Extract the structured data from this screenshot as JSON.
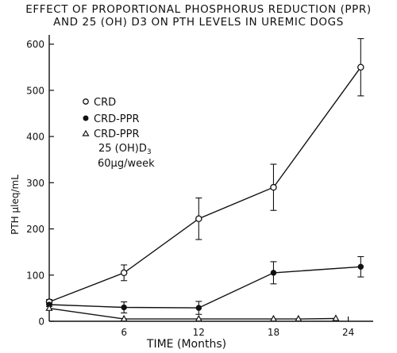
{
  "chart_data": {
    "type": "line",
    "title_lines": [
      "EFFECT OF PROPORTIONAL PHOSPHORUS REDUCTION (PPR)",
      "AND 25 (OH) D3 ON PTH LEVELS IN UREMIC DOGS"
    ],
    "xlabel": "TIME  (Months)",
    "ylabel": "PTH  μleq/mL",
    "xlim": [
      0,
      26
    ],
    "ylim": [
      0,
      620
    ],
    "xticks": [
      6,
      12,
      18,
      24
    ],
    "yticks": [
      0,
      100,
      200,
      300,
      400,
      500,
      600
    ],
    "grid": false,
    "legend_position": "left",
    "series": [
      {
        "name": "CRD",
        "marker": "open-circle",
        "points": [
          {
            "x": 0,
            "y": 42
          },
          {
            "x": 6,
            "y": 105
          },
          {
            "x": 12,
            "y": 222
          },
          {
            "x": 18,
            "y": 290
          },
          {
            "x": 25,
            "y": 550
          }
        ],
        "errors": [
          5,
          17,
          45,
          50,
          62
        ]
      },
      {
        "name": "CRD-PPR",
        "marker": "filled-circle",
        "points": [
          {
            "x": 0,
            "y": 36
          },
          {
            "x": 6,
            "y": 30
          },
          {
            "x": 12,
            "y": 29
          },
          {
            "x": 18,
            "y": 105
          },
          {
            "x": 25,
            "y": 118
          }
        ],
        "errors": [
          4,
          12,
          14,
          24,
          22
        ]
      },
      {
        "name": "CRD-PPR 25 (OH)D3 60μg/week",
        "marker": "open-triangle",
        "points": [
          {
            "x": 0,
            "y": 28
          },
          {
            "x": 6,
            "y": 5
          },
          {
            "x": 12,
            "y": 5
          },
          {
            "x": 18,
            "y": 5
          },
          {
            "x": 20,
            "y": 5
          },
          {
            "x": 23,
            "y": 6
          }
        ],
        "errors": [
          0,
          0,
          0,
          0,
          0,
          0
        ]
      }
    ],
    "legend_lines": {
      "crd": "CRD",
      "crd_ppr": "CRD-PPR",
      "crd_ppr_oh_1": "CRD-PPR",
      "crd_ppr_oh_2": "25 (OH)D",
      "crd_ppr_oh_2_sub": "3",
      "crd_ppr_oh_3": "60μg/week"
    }
  }
}
